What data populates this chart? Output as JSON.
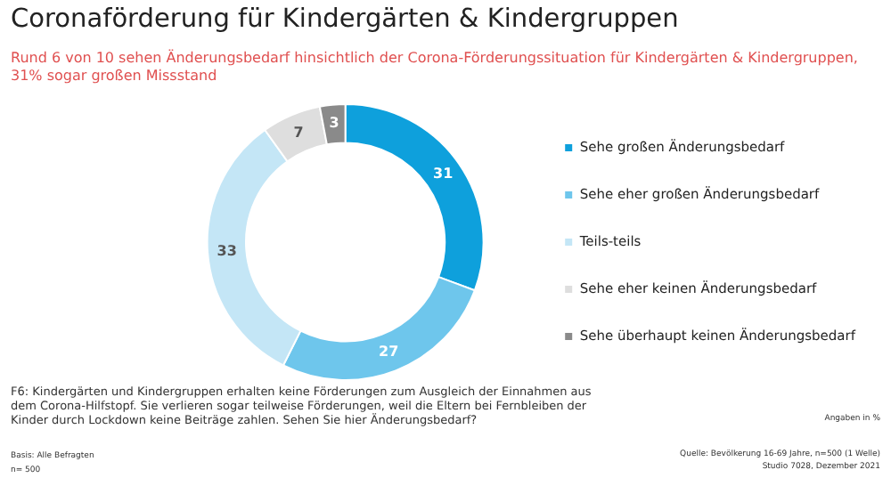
{
  "chart_data": {
    "type": "donut",
    "title": "Coronaförderung für Kindergärten & Kindergruppen",
    "subtitle": "Rund 6 von 10 sehen Änderungsbedarf hinsichtlich der Corona-Förderungssituation für Kindergärten & Kindergruppen, 31% sogar großen Missstand",
    "categories": [
      "Sehe großen Änderungsbedarf",
      "Sehe eher großen Änderungsbedarf",
      "Teils-teils",
      "Sehe eher keinen Änderungsbedarf",
      "Sehe überhaupt keinen Änderungsbedarf"
    ],
    "values": [
      31,
      27,
      33,
      7,
      3
    ],
    "colors": [
      "#0ea0dc",
      "#6ec6ec",
      "#c4e6f6",
      "#dedede",
      "#8a8a8a"
    ],
    "data_labels": true,
    "legend": "right",
    "annotations": [
      "F6: Kindergärten und Kindergruppen erhalten keine Förderungen zum Ausgleich der Einnahmen aus dem Corona-Hilfstopf. Sie verlieren sogar teilweise Förderungen, weil die Eltern bei Fernbleiben der Kinder durch Lockdown keine Beiträge zahlen. Sehen Sie hier Änderungsbedarf?",
      "Angaben in %",
      "Basis: Alle Befragten",
      "n= 500",
      "Quelle: Bevölkerung 16-69 Jahre, n=500 (1 Welle)",
      "Studio 7028, Dezember 2021"
    ]
  }
}
